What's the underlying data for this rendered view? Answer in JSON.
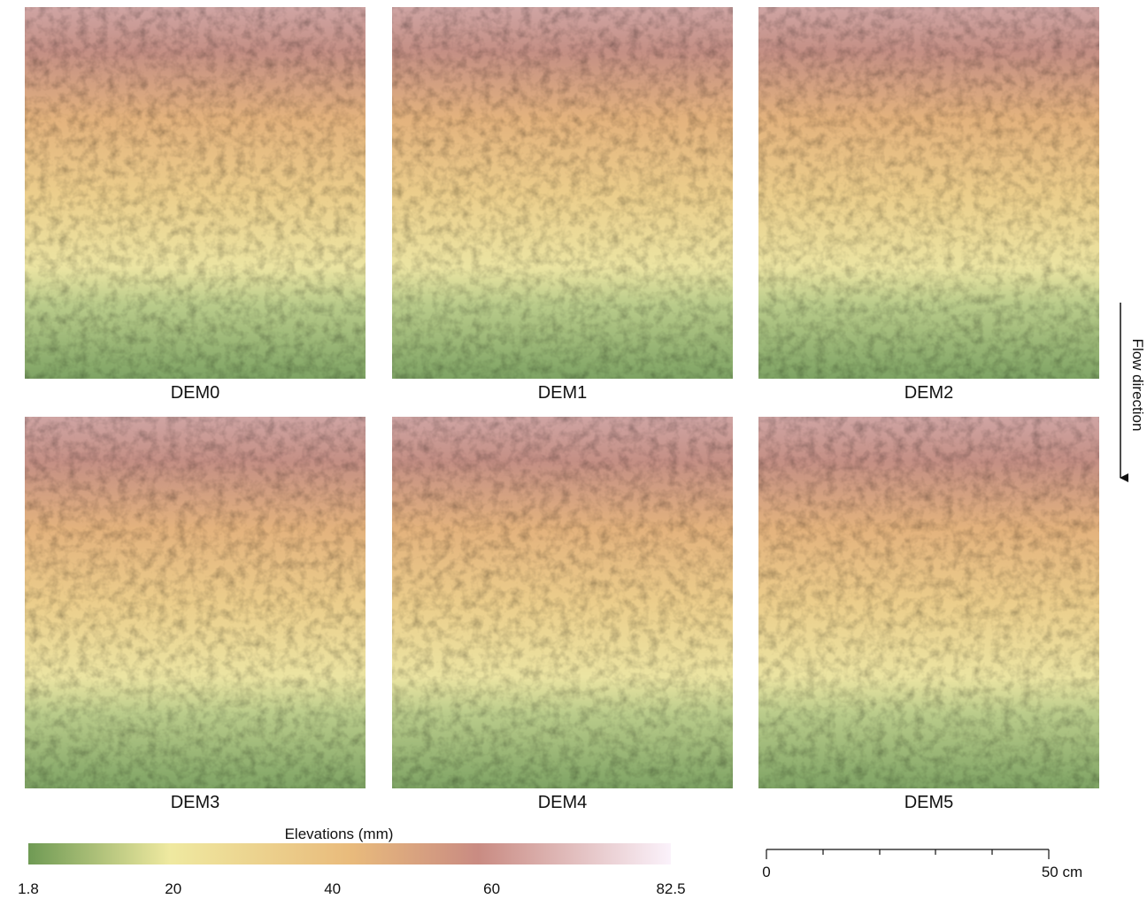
{
  "panels": [
    "DEM0",
    "DEM1",
    "DEM2",
    "DEM3",
    "DEM4",
    "DEM5"
  ],
  "flow_label": "Flow direction",
  "colorbar": {
    "title": "Elevations (mm)",
    "lim": [
      1.8,
      82.5
    ],
    "ticks": [
      1.8,
      20,
      40,
      60,
      82.5
    ]
  },
  "scale_bar": {
    "labels": [
      "0",
      "50 cm"
    ]
  }
}
